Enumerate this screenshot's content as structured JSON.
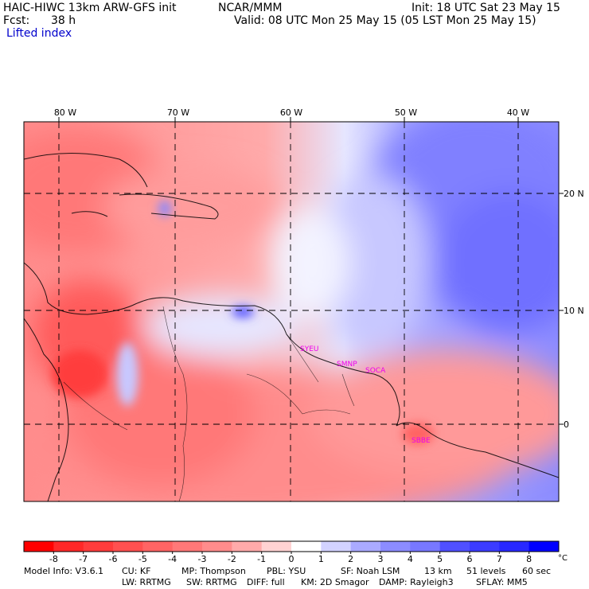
{
  "header": {
    "model": "HAIC-HIWC 13km ARW-GFS init",
    "org": "NCAR/MMM",
    "init": "Init: 18 UTC Sat 23 May 15",
    "fcst_label": "Fcst:",
    "fcst_value": "38 h",
    "valid": "Valid: 08 UTC Mon 25 May 15 (05 LST Mon 25 May 15)",
    "field": "Lifted index"
  },
  "map": {
    "lon_labels": [
      "80 W",
      "70 W",
      "60 W",
      "50 W",
      "40 W"
    ],
    "lat_labels": [
      "20 N",
      "10 N",
      "0"
    ],
    "stations": [
      "SYEU",
      "SMNP",
      "SOCA",
      "SBBE"
    ]
  },
  "colorbar": {
    "labels": [
      "-8",
      "-7",
      "-6",
      "-5",
      "-4",
      "-3",
      "-2",
      "-1",
      "0",
      "1",
      "2",
      "3",
      "4",
      "5",
      "6",
      "7",
      "8"
    ],
    "unit": "°C",
    "colors": [
      "#ff0000",
      "#ff2828",
      "#ff3c3c",
      "#ff5050",
      "#ff6464",
      "#ff7878",
      "#ff8c8c",
      "#ffaaaa",
      "#ffd2d2",
      "#ffffff",
      "#d2d2ff",
      "#aaaaff",
      "#8c8cff",
      "#7878ff",
      "#5050ff",
      "#3c3cff",
      "#2828ff",
      "#0000ff"
    ]
  },
  "footer": {
    "line1": [
      "Model Info: V3.6.1",
      "CU: KF",
      "MP: Thompson",
      "PBL: YSU",
      "SF: Noah LSM",
      "13 km",
      "51 levels",
      "60 sec"
    ],
    "line2": [
      "LW: RRTMG",
      "SW: RRTMG",
      "DIFF: full",
      "KM: 2D Smagor",
      "DAMP: Rayleigh3",
      "SFLAY: MM5"
    ]
  }
}
